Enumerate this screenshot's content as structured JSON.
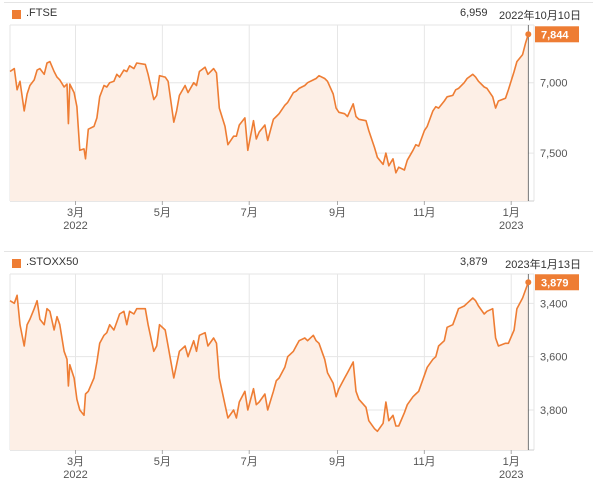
{
  "colors": {
    "line": "#ee7d34",
    "fill": "#fdefe6",
    "grid": "#e6e6e6",
    "badge": "#ee7d34"
  },
  "panels": [
    {
      "symbol": ".FTSE",
      "header_value": "6,959",
      "header_date": "2022年10月10日",
      "current_label": "7,844",
      "y_ticks": [
        "7,500",
        "7,000"
      ],
      "x_ticks": [
        {
          "month": "3月",
          "year": "2022"
        },
        {
          "month": "5月",
          "year": ""
        },
        {
          "month": "7月",
          "year": ""
        },
        {
          "month": "9月",
          "year": ""
        },
        {
          "month": "11月",
          "year": ""
        },
        {
          "month": "1月",
          "year": "2023"
        }
      ]
    },
    {
      "symbol": ".STOXX50",
      "header_value": "3,879",
      "header_date": "2023年1月13日",
      "current_label": "3,879",
      "y_ticks": [
        "3,800",
        "3,600",
        "3,400"
      ],
      "x_ticks": [
        {
          "month": "3月",
          "year": "2022"
        },
        {
          "month": "5月",
          "year": ""
        },
        {
          "month": "7月",
          "year": ""
        },
        {
          "month": "9月",
          "year": ""
        },
        {
          "month": "11月",
          "year": ""
        },
        {
          "month": "1月",
          "year": "2023"
        }
      ]
    }
  ],
  "chart_data": [
    {
      "type": "area",
      "title": ".FTSE",
      "ylim": [
        6660,
        7910
      ],
      "xlim": [
        "2022-01-14",
        "2023-01-17"
      ],
      "y_ticks": [
        7000,
        7500
      ],
      "grid": true,
      "series": [
        {
          "x": [
            "2022-01-14",
            "2022-01-17",
            "2022-01-19",
            "2022-01-21",
            "2022-01-24",
            "2022-01-26",
            "2022-01-28",
            "2022-01-31",
            "2022-02-02",
            "2022-02-04",
            "2022-02-07",
            "2022-02-09",
            "2022-02-11",
            "2022-02-14",
            "2022-02-16",
            "2022-02-18",
            "2022-02-21",
            "2022-02-23",
            "2022-02-24",
            "2022-02-25",
            "2022-02-28",
            "2022-03-02",
            "2022-03-04",
            "2022-03-07",
            "2022-03-08",
            "2022-03-10",
            "2022-03-14",
            "2022-03-16",
            "2022-03-18",
            "2022-03-21",
            "2022-03-23",
            "2022-03-25",
            "2022-03-28",
            "2022-03-30",
            "2022-04-01",
            "2022-04-04",
            "2022-04-06",
            "2022-04-08",
            "2022-04-11",
            "2022-04-13",
            "2022-04-19",
            "2022-04-21",
            "2022-04-25",
            "2022-04-27",
            "2022-04-29",
            "2022-05-03",
            "2022-05-05",
            "2022-05-09",
            "2022-05-11",
            "2022-05-13",
            "2022-05-17",
            "2022-05-19",
            "2022-05-23",
            "2022-05-25",
            "2022-05-27",
            "2022-05-31",
            "2022-06-02",
            "2022-06-06",
            "2022-06-08",
            "2022-06-10",
            "2022-06-14",
            "2022-06-16",
            "2022-06-20",
            "2022-06-22",
            "2022-06-24",
            "2022-06-28",
            "2022-06-30",
            "2022-07-04",
            "2022-07-06",
            "2022-07-08",
            "2022-07-12",
            "2022-07-14",
            "2022-07-18",
            "2022-07-20",
            "2022-07-22",
            "2022-07-26",
            "2022-07-28",
            "2022-08-01",
            "2022-08-03",
            "2022-08-05",
            "2022-08-09",
            "2022-08-11",
            "2022-08-15",
            "2022-08-17",
            "2022-08-19",
            "2022-08-23",
            "2022-08-25",
            "2022-08-29",
            "2022-08-31",
            "2022-09-02",
            "2022-09-06",
            "2022-09-08",
            "2022-09-12",
            "2022-09-14",
            "2022-09-16",
            "2022-09-21",
            "2022-09-23",
            "2022-09-27",
            "2022-09-29",
            "2022-10-03",
            "2022-10-05",
            "2022-10-07",
            "2022-10-10",
            "2022-10-12",
            "2022-10-14",
            "2022-10-18",
            "2022-10-20",
            "2022-10-24",
            "2022-10-26",
            "2022-10-28",
            "2022-11-01",
            "2022-11-03",
            "2022-11-07",
            "2022-11-09",
            "2022-11-11",
            "2022-11-15",
            "2022-11-17",
            "2022-11-21",
            "2022-11-23",
            "2022-11-25",
            "2022-11-29",
            "2022-12-01",
            "2022-12-05",
            "2022-12-07",
            "2022-12-09",
            "2022-12-13",
            "2022-12-15",
            "2022-12-19",
            "2022-12-21",
            "2022-12-23",
            "2022-12-28",
            "2022-12-30",
            "2023-01-03",
            "2023-01-05",
            "2023-01-09",
            "2023-01-11",
            "2023-01-13"
          ],
          "y": [
            7580,
            7600,
            7450,
            7510,
            7300,
            7420,
            7480,
            7520,
            7590,
            7600,
            7560,
            7640,
            7650,
            7580,
            7540,
            7520,
            7470,
            7490,
            7210,
            7490,
            7430,
            7330,
            7020,
            7030,
            6960,
            7170,
            7190,
            7250,
            7400,
            7480,
            7470,
            7500,
            7510,
            7560,
            7540,
            7590,
            7580,
            7620,
            7600,
            7640,
            7630,
            7560,
            7380,
            7410,
            7550,
            7540,
            7510,
            7220,
            7300,
            7410,
            7480,
            7430,
            7500,
            7480,
            7580,
            7610,
            7560,
            7600,
            7570,
            7320,
            7190,
            7060,
            7120,
            7120,
            7200,
            7250,
            7020,
            7230,
            7100,
            7150,
            7200,
            7090,
            7240,
            7260,
            7280,
            7340,
            7360,
            7430,
            7440,
            7460,
            7480,
            7500,
            7520,
            7530,
            7550,
            7530,
            7510,
            7420,
            7320,
            7290,
            7280,
            7260,
            7350,
            7260,
            7240,
            7230,
            7160,
            7040,
            6970,
            6920,
            7000,
            6910,
            6960,
            6860,
            6900,
            6880,
            6950,
            7020,
            7060,
            7050,
            7160,
            7190,
            7300,
            7330,
            7320,
            7370,
            7400,
            7410,
            7450,
            7460,
            7500,
            7530,
            7560,
            7540,
            7510,
            7470,
            7460,
            7400,
            7320,
            7370,
            7390,
            7450,
            7580,
            7650,
            7700,
            7780,
            7844
          ]
        }
      ]
    },
    {
      "type": "area",
      "title": ".STOXX50",
      "ylim": [
        3250,
        3910
      ],
      "xlim": [
        "2022-01-14",
        "2023-01-17"
      ],
      "y_ticks": [
        3400,
        3600,
        3800
      ],
      "grid": true,
      "series": [
        {
          "x": [
            "2022-01-14",
            "2022-01-17",
            "2022-01-19",
            "2022-01-21",
            "2022-01-24",
            "2022-01-26",
            "2022-01-28",
            "2022-01-31",
            "2022-02-02",
            "2022-02-04",
            "2022-02-07",
            "2022-02-09",
            "2022-02-11",
            "2022-02-14",
            "2022-02-16",
            "2022-02-18",
            "2022-02-21",
            "2022-02-23",
            "2022-02-24",
            "2022-02-25",
            "2022-02-28",
            "2022-03-02",
            "2022-03-04",
            "2022-03-07",
            "2022-03-08",
            "2022-03-10",
            "2022-03-14",
            "2022-03-16",
            "2022-03-18",
            "2022-03-21",
            "2022-03-23",
            "2022-03-25",
            "2022-03-28",
            "2022-03-30",
            "2022-04-01",
            "2022-04-04",
            "2022-04-06",
            "2022-04-08",
            "2022-04-11",
            "2022-04-13",
            "2022-04-19",
            "2022-04-21",
            "2022-04-25",
            "2022-04-27",
            "2022-04-29",
            "2022-05-03",
            "2022-05-05",
            "2022-05-09",
            "2022-05-11",
            "2022-05-13",
            "2022-05-17",
            "2022-05-19",
            "2022-05-23",
            "2022-05-25",
            "2022-05-27",
            "2022-05-31",
            "2022-06-02",
            "2022-06-06",
            "2022-06-08",
            "2022-06-10",
            "2022-06-14",
            "2022-06-16",
            "2022-06-20",
            "2022-06-22",
            "2022-06-24",
            "2022-06-28",
            "2022-06-30",
            "2022-07-04",
            "2022-07-06",
            "2022-07-08",
            "2022-07-12",
            "2022-07-14",
            "2022-07-18",
            "2022-07-20",
            "2022-07-22",
            "2022-07-26",
            "2022-07-28",
            "2022-08-01",
            "2022-08-03",
            "2022-08-05",
            "2022-08-09",
            "2022-08-11",
            "2022-08-15",
            "2022-08-17",
            "2022-08-19",
            "2022-08-23",
            "2022-08-25",
            "2022-08-29",
            "2022-08-31",
            "2022-09-02",
            "2022-09-06",
            "2022-09-08",
            "2022-09-12",
            "2022-09-14",
            "2022-09-16",
            "2022-09-21",
            "2022-09-23",
            "2022-09-27",
            "2022-09-29",
            "2022-10-03",
            "2022-10-05",
            "2022-10-07",
            "2022-10-10",
            "2022-10-12",
            "2022-10-14",
            "2022-10-18",
            "2022-10-20",
            "2022-10-24",
            "2022-10-26",
            "2022-10-28",
            "2022-11-01",
            "2022-11-03",
            "2022-11-07",
            "2022-11-09",
            "2022-11-11",
            "2022-11-15",
            "2022-11-17",
            "2022-11-21",
            "2022-11-23",
            "2022-11-25",
            "2022-11-29",
            "2022-12-01",
            "2022-12-05",
            "2022-12-07",
            "2022-12-09",
            "2022-12-13",
            "2022-12-15",
            "2022-12-19",
            "2022-12-21",
            "2022-12-23",
            "2022-12-28",
            "2022-12-30",
            "2023-01-03",
            "2023-01-05",
            "2023-01-09",
            "2023-01-11",
            "2023-01-13"
          ],
          "y": [
            3810,
            3800,
            3830,
            3720,
            3640,
            3720,
            3740,
            3780,
            3810,
            3740,
            3720,
            3780,
            3770,
            3700,
            3750,
            3720,
            3620,
            3590,
            3490,
            3570,
            3520,
            3440,
            3400,
            3380,
            3460,
            3470,
            3520,
            3580,
            3650,
            3680,
            3690,
            3720,
            3700,
            3730,
            3760,
            3770,
            3720,
            3770,
            3760,
            3780,
            3780,
            3720,
            3620,
            3640,
            3720,
            3700,
            3640,
            3520,
            3570,
            3620,
            3640,
            3600,
            3660,
            3620,
            3680,
            3690,
            3640,
            3670,
            3650,
            3520,
            3420,
            3370,
            3400,
            3370,
            3430,
            3470,
            3400,
            3480,
            3420,
            3430,
            3460,
            3400,
            3470,
            3510,
            3520,
            3560,
            3600,
            3620,
            3640,
            3660,
            3670,
            3660,
            3680,
            3660,
            3650,
            3590,
            3540,
            3500,
            3450,
            3480,
            3520,
            3540,
            3580,
            3470,
            3440,
            3410,
            3360,
            3330,
            3320,
            3350,
            3430,
            3360,
            3380,
            3340,
            3340,
            3390,
            3420,
            3450,
            3460,
            3470,
            3530,
            3560,
            3590,
            3600,
            3640,
            3660,
            3710,
            3720,
            3750,
            3780,
            3790,
            3800,
            3820,
            3810,
            3790,
            3760,
            3770,
            3780,
            3670,
            3640,
            3650,
            3650,
            3700,
            3780,
            3820,
            3850,
            3879
          ]
        }
      ]
    }
  ]
}
